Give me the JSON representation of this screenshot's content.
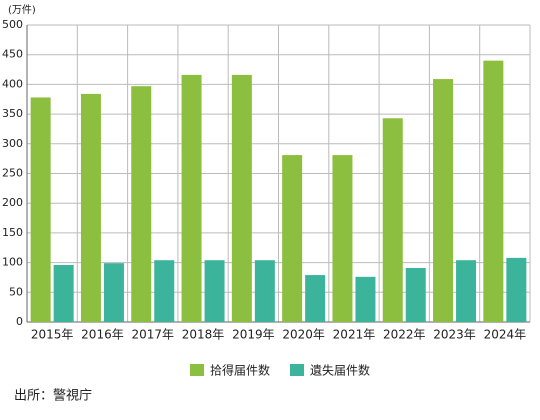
{
  "chart_data": {
    "type": "bar",
    "unit_label": "(万件)",
    "categories": [
      "2015年",
      "2016年",
      "2017年",
      "2018年",
      "2019年",
      "2020年",
      "2021年",
      "2022年",
      "2023年",
      "2024年"
    ],
    "series": [
      {
        "name": "拾得届件数",
        "color": "#8cbf3f",
        "values": [
          378,
          384,
          397,
          416,
          416,
          281,
          281,
          343,
          409,
          440
        ]
      },
      {
        "name": "遺失届件数",
        "color": "#3cb49c",
        "values": [
          96,
          99,
          104,
          104,
          104,
          79,
          76,
          91,
          104,
          108
        ]
      }
    ],
    "ylim": [
      0,
      500
    ],
    "yticks": [
      0,
      50,
      100,
      150,
      200,
      250,
      300,
      350,
      400,
      450,
      500
    ],
    "grid": true,
    "legend": "bottom",
    "source": "出所：警視庁"
  }
}
